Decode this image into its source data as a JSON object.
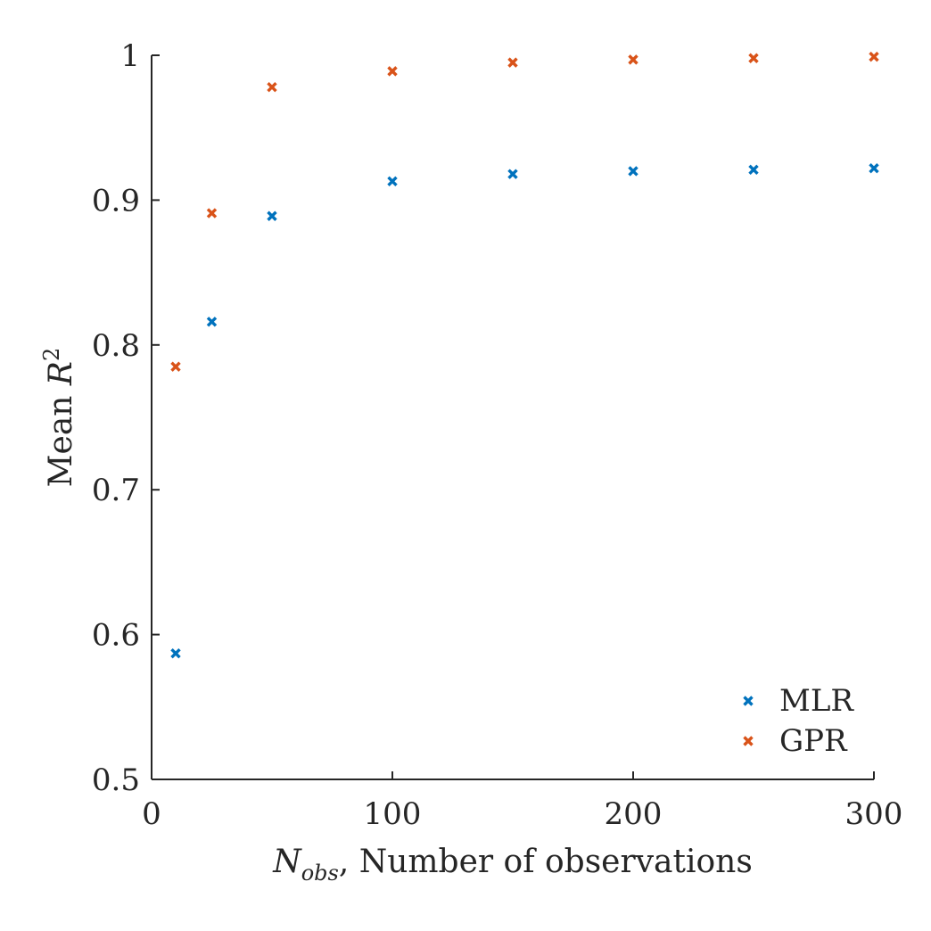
{
  "chart_data": {
    "type": "scatter",
    "title": "",
    "xlabel": {
      "main": "N",
      "subscript": "obs",
      "rest": ", Number of observations"
    },
    "ylabel": {
      "prefix": "Mean ",
      "symbol": "R",
      "superscript": "2"
    },
    "xlim": [
      0,
      300
    ],
    "ylim": [
      0.5,
      1
    ],
    "xticks": [
      0,
      100,
      200,
      300
    ],
    "xtick_labels": [
      "0",
      "100",
      "200",
      "300"
    ],
    "yticks": [
      0.5,
      0.6,
      0.7,
      0.8,
      0.9,
      1.0
    ],
    "ytick_labels": [
      "0.5",
      "0.6",
      "0.7",
      "0.8",
      "0.9",
      "1"
    ],
    "grid": false,
    "legend_position": "bottom-right",
    "x": [
      10,
      25,
      50,
      100,
      150,
      200,
      250,
      300
    ],
    "series": [
      {
        "name": "MLR",
        "color": "#0072BD",
        "marker": "x",
        "values": [
          0.587,
          0.816,
          0.889,
          0.913,
          0.918,
          0.92,
          0.921,
          0.922
        ]
      },
      {
        "name": "GPR",
        "color": "#D95319",
        "marker": "x",
        "values": [
          0.785,
          0.891,
          0.978,
          0.989,
          0.995,
          0.997,
          0.998,
          0.999
        ]
      }
    ]
  }
}
